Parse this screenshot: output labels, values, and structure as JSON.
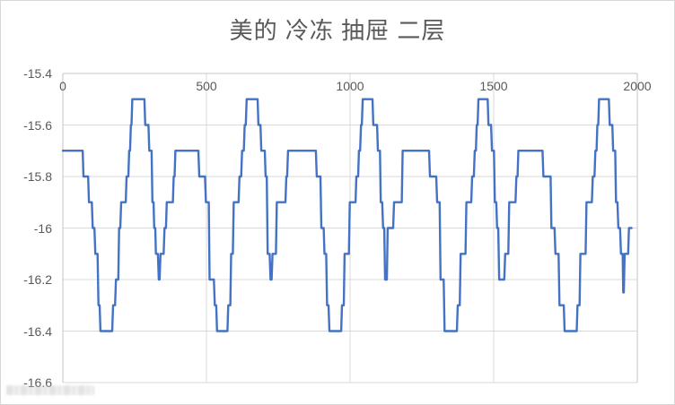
{
  "title": "美的 冷冻 抽屉 二层",
  "chart_data": {
    "type": "line",
    "title": "美的 冷冻 抽屉 二层",
    "xlabel": "",
    "ylabel": "",
    "xlim": [
      0,
      2000
    ],
    "ylim": [
      -16.6,
      -15.4
    ],
    "xtick_labels": [
      "0",
      "500",
      "1000",
      "1500",
      "2000"
    ],
    "xtick_values": [
      0,
      500,
      1000,
      1500,
      2000
    ],
    "ytick_labels": [
      "-15.4",
      "-15.6",
      "-15.8",
      "-16",
      "-16.2",
      "-16.4",
      "-16.6"
    ],
    "ytick_values": [
      -15.4,
      -15.6,
      -15.8,
      -16,
      -16.2,
      -16.4,
      -16.6
    ],
    "x_axis_position": "top",
    "grid": true,
    "legend": "none",
    "colors": {
      "line": "#4472C4",
      "grid": "#D9D9D9",
      "border": "#C6C6C6",
      "label": "#595959",
      "title": "#595959"
    },
    "series": [
      {
        "points": [
          [
            0,
            -15.7
          ],
          [
            69,
            -15.7
          ],
          [
            72,
            -15.8
          ],
          [
            88,
            -15.8
          ],
          [
            91,
            -15.9
          ],
          [
            101,
            -15.9
          ],
          [
            104,
            -16
          ],
          [
            110,
            -16
          ],
          [
            113,
            -16.1
          ],
          [
            121,
            -16.1
          ],
          [
            124,
            -16.3
          ],
          [
            128,
            -16.3
          ],
          [
            131,
            -16.4
          ],
          [
            172,
            -16.4
          ],
          [
            175,
            -16.3
          ],
          [
            182,
            -16.3
          ],
          [
            185,
            -16.2
          ],
          [
            193,
            -16.2
          ],
          [
            196,
            -16
          ],
          [
            200,
            -16
          ],
          [
            203,
            -15.9
          ],
          [
            219,
            -15.9
          ],
          [
            222,
            -15.8
          ],
          [
            228,
            -15.8
          ],
          [
            231,
            -15.7
          ],
          [
            234,
            -15.7
          ],
          [
            237,
            -15.6
          ],
          [
            239,
            -15.6
          ],
          [
            242,
            -15.5
          ],
          [
            284,
            -15.5
          ],
          [
            287,
            -15.6
          ],
          [
            298,
            -15.6
          ],
          [
            301,
            -15.7
          ],
          [
            309,
            -15.7
          ],
          [
            312,
            -15.9
          ],
          [
            316,
            -15.9
          ],
          [
            318,
            -16
          ],
          [
            322,
            -16
          ],
          [
            324,
            -16.1
          ],
          [
            331,
            -16.1
          ],
          [
            334,
            -16.2
          ],
          [
            337,
            -16.2
          ],
          [
            340,
            -16.1
          ],
          [
            351,
            -16.1
          ],
          [
            354,
            -16
          ],
          [
            359,
            -16
          ],
          [
            362,
            -15.9
          ],
          [
            383,
            -15.9
          ],
          [
            386,
            -15.8
          ],
          [
            389,
            -15.8
          ],
          [
            392,
            -15.7
          ],
          [
            472,
            -15.7
          ],
          [
            475,
            -15.8
          ],
          [
            495,
            -15.8
          ],
          [
            498,
            -15.9
          ],
          [
            508,
            -15.9
          ],
          [
            511,
            -16.2
          ],
          [
            526,
            -16.2
          ],
          [
            529,
            -16.3
          ],
          [
            534,
            -16.3
          ],
          [
            537,
            -16.4
          ],
          [
            573,
            -16.4
          ],
          [
            576,
            -16.3
          ],
          [
            583,
            -16.3
          ],
          [
            586,
            -16.1
          ],
          [
            592,
            -16.1
          ],
          [
            595,
            -15.9
          ],
          [
            612,
            -15.9
          ],
          [
            615,
            -15.8
          ],
          [
            621,
            -15.8
          ],
          [
            624,
            -15.7
          ],
          [
            630,
            -15.7
          ],
          [
            633,
            -15.6
          ],
          [
            637,
            -15.6
          ],
          [
            640,
            -15.5
          ],
          [
            678,
            -15.5
          ],
          [
            681,
            -15.6
          ],
          [
            688,
            -15.6
          ],
          [
            691,
            -15.7
          ],
          [
            703,
            -15.7
          ],
          [
            706,
            -15.8
          ],
          [
            710,
            -15.8
          ],
          [
            713,
            -16.1
          ],
          [
            720,
            -16.1
          ],
          [
            723,
            -16.2
          ],
          [
            727,
            -16.2
          ],
          [
            730,
            -16.1
          ],
          [
            742,
            -16.1
          ],
          [
            745,
            -15.9
          ],
          [
            775,
            -15.9
          ],
          [
            778,
            -15.8
          ],
          [
            781,
            -15.8
          ],
          [
            784,
            -15.7
          ],
          [
            881,
            -15.7
          ],
          [
            884,
            -15.8
          ],
          [
            897,
            -15.8
          ],
          [
            900,
            -16
          ],
          [
            908,
            -16
          ],
          [
            911,
            -16.1
          ],
          [
            917,
            -16.1
          ],
          [
            920,
            -16.3
          ],
          [
            925,
            -16.3
          ],
          [
            928,
            -16.4
          ],
          [
            969,
            -16.4
          ],
          [
            972,
            -16.3
          ],
          [
            978,
            -16.3
          ],
          [
            981,
            -16.1
          ],
          [
            996,
            -16.1
          ],
          [
            999,
            -15.9
          ],
          [
            1019,
            -15.9
          ],
          [
            1022,
            -15.8
          ],
          [
            1028,
            -15.8
          ],
          [
            1031,
            -15.7
          ],
          [
            1035,
            -15.7
          ],
          [
            1038,
            -15.6
          ],
          [
            1041,
            -15.6
          ],
          [
            1044,
            -15.5
          ],
          [
            1078,
            -15.5
          ],
          [
            1081,
            -15.6
          ],
          [
            1094,
            -15.6
          ],
          [
            1097,
            -15.7
          ],
          [
            1104,
            -15.7
          ],
          [
            1107,
            -15.9
          ],
          [
            1112,
            -15.9
          ],
          [
            1115,
            -16
          ],
          [
            1119,
            -16
          ],
          [
            1122,
            -16.2
          ],
          [
            1128,
            -16.2
          ],
          [
            1131,
            -16
          ],
          [
            1150,
            -16
          ],
          [
            1153,
            -15.9
          ],
          [
            1180,
            -15.9
          ],
          [
            1183,
            -15.7
          ],
          [
            1275,
            -15.7
          ],
          [
            1278,
            -15.8
          ],
          [
            1300,
            -15.8
          ],
          [
            1303,
            -15.9
          ],
          [
            1312,
            -15.9
          ],
          [
            1315,
            -16.2
          ],
          [
            1326,
            -16.2
          ],
          [
            1329,
            -16.4
          ],
          [
            1372,
            -16.4
          ],
          [
            1375,
            -16.3
          ],
          [
            1382,
            -16.3
          ],
          [
            1385,
            -16.1
          ],
          [
            1402,
            -16.1
          ],
          [
            1405,
            -15.9
          ],
          [
            1422,
            -15.9
          ],
          [
            1425,
            -15.8
          ],
          [
            1431,
            -15.8
          ],
          [
            1434,
            -15.7
          ],
          [
            1438,
            -15.7
          ],
          [
            1441,
            -15.6
          ],
          [
            1444,
            -15.6
          ],
          [
            1447,
            -15.5
          ],
          [
            1479,
            -15.5
          ],
          [
            1482,
            -15.6
          ],
          [
            1491,
            -15.6
          ],
          [
            1494,
            -15.7
          ],
          [
            1501,
            -15.7
          ],
          [
            1504,
            -15.9
          ],
          [
            1509,
            -15.9
          ],
          [
            1512,
            -16
          ],
          [
            1516,
            -16
          ],
          [
            1519,
            -16.2
          ],
          [
            1537,
            -16.2
          ],
          [
            1540,
            -16.1
          ],
          [
            1551,
            -16.1
          ],
          [
            1554,
            -15.9
          ],
          [
            1576,
            -15.9
          ],
          [
            1579,
            -15.8
          ],
          [
            1583,
            -15.8
          ],
          [
            1586,
            -15.7
          ],
          [
            1670,
            -15.7
          ],
          [
            1673,
            -15.8
          ],
          [
            1698,
            -15.8
          ],
          [
            1701,
            -16
          ],
          [
            1712,
            -16
          ],
          [
            1715,
            -16.1
          ],
          [
            1726,
            -16.1
          ],
          [
            1729,
            -16.3
          ],
          [
            1744,
            -16.3
          ],
          [
            1747,
            -16.4
          ],
          [
            1789,
            -16.4
          ],
          [
            1792,
            -16.3
          ],
          [
            1799,
            -16.3
          ],
          [
            1802,
            -16.1
          ],
          [
            1820,
            -16.1
          ],
          [
            1823,
            -15.9
          ],
          [
            1842,
            -15.9
          ],
          [
            1845,
            -15.8
          ],
          [
            1851,
            -15.8
          ],
          [
            1854,
            -15.7
          ],
          [
            1858,
            -15.7
          ],
          [
            1861,
            -15.6
          ],
          [
            1864,
            -15.6
          ],
          [
            1867,
            -15.5
          ],
          [
            1901,
            -15.5
          ],
          [
            1904,
            -15.6
          ],
          [
            1913,
            -15.6
          ],
          [
            1916,
            -15.7
          ],
          [
            1923,
            -15.7
          ],
          [
            1926,
            -15.9
          ],
          [
            1931,
            -15.9
          ],
          [
            1934,
            -16
          ],
          [
            1940,
            -16
          ],
          [
            1943,
            -16.1
          ],
          [
            1949,
            -16.1
          ],
          [
            1951,
            -16.25
          ],
          [
            1953,
            -16.25
          ],
          [
            1956,
            -16.1
          ],
          [
            1968,
            -16.1
          ],
          [
            1971,
            -16
          ],
          [
            1980,
            -16
          ]
        ]
      }
    ]
  }
}
